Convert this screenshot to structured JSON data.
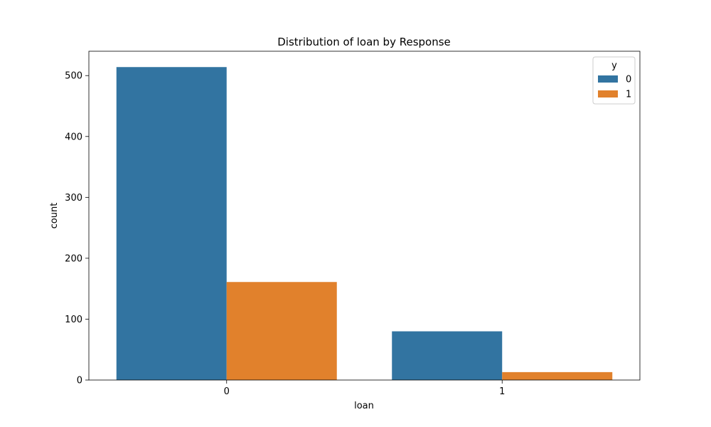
{
  "chart_data": {
    "type": "bar",
    "title": "Distribution of loan by Response",
    "xlabel": "loan",
    "ylabel": "count",
    "categories": [
      "0",
      "1"
    ],
    "series": [
      {
        "name": "0",
        "values": [
          514,
          80
        ],
        "color": "#3274a1"
      },
      {
        "name": "1",
        "values": [
          161,
          13
        ],
        "color": "#e1812c"
      }
    ],
    "yticks": [
      0,
      100,
      200,
      300,
      400,
      500
    ],
    "ylim": [
      0,
      540
    ],
    "grid": false,
    "legend": {
      "title": "y",
      "placement": "top-right"
    }
  }
}
